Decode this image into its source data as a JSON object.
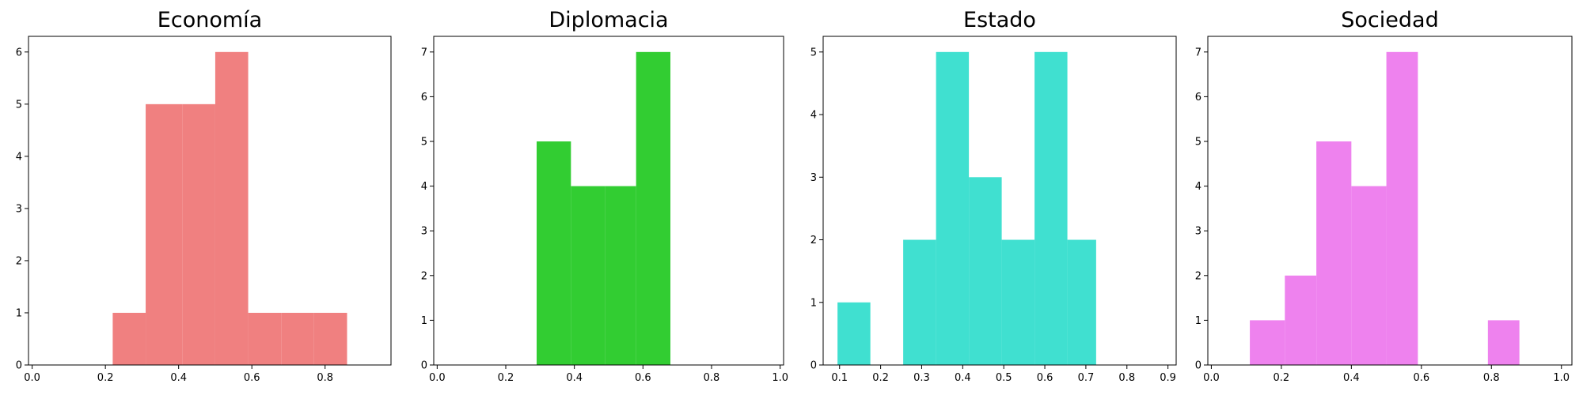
{
  "chart_data": [
    {
      "type": "bar",
      "title": "Economía",
      "color": "#F08080",
      "xlim": [
        -0.01,
        0.98
      ],
      "ylim": [
        0,
        6.3
      ],
      "xticks": [
        0.0,
        0.2,
        0.4,
        0.6,
        0.8
      ],
      "xtick_labels": [
        "0.0",
        "0.2",
        "0.4",
        "0.6",
        "0.8"
      ],
      "yticks": [
        0,
        1,
        2,
        3,
        4,
        5,
        6
      ],
      "ytick_labels": [
        "0",
        "1",
        "2",
        "3",
        "4",
        "5",
        "6"
      ],
      "bin_edges": [
        0.22,
        0.31,
        0.41,
        0.5,
        0.59,
        0.68,
        0.77,
        0.86
      ],
      "counts": [
        1,
        5,
        5,
        6,
        1,
        1,
        1
      ]
    },
    {
      "type": "bar",
      "title": "Diplomacia",
      "color": "#32CD32",
      "xlim": [
        -0.01,
        1.01
      ],
      "ylim": [
        0,
        7.35
      ],
      "xticks": [
        0.0,
        0.2,
        0.4,
        0.6,
        0.8,
        1.0
      ],
      "xtick_labels": [
        "0.0",
        "0.2",
        "0.4",
        "0.6",
        "0.8",
        "1.0"
      ],
      "yticks": [
        0,
        1,
        2,
        3,
        4,
        5,
        6,
        7
      ],
      "ytick_labels": [
        "0",
        "1",
        "2",
        "3",
        "4",
        "5",
        "6",
        "7"
      ],
      "bin_edges": [
        0.29,
        0.39,
        0.49,
        0.58,
        0.68
      ],
      "counts": [
        5,
        4,
        4,
        7
      ]
    },
    {
      "type": "bar",
      "title": "Estado",
      "color": "#40E0D0",
      "xlim": [
        0.06,
        0.92
      ],
      "ylim": [
        0,
        5.25
      ],
      "xticks": [
        0.1,
        0.2,
        0.3,
        0.4,
        0.5,
        0.6,
        0.7,
        0.8,
        0.9
      ],
      "xtick_labels": [
        "0.1",
        "0.2",
        "0.3",
        "0.4",
        "0.5",
        "0.6",
        "0.7",
        "0.8",
        "0.9"
      ],
      "yticks": [
        0,
        1,
        2,
        3,
        4,
        5
      ],
      "ytick_labels": [
        "0",
        "1",
        "2",
        "3",
        "4",
        "5"
      ],
      "bin_edges": [
        0.095,
        0.175,
        0.255,
        0.335,
        0.415,
        0.495,
        0.575,
        0.655,
        0.725
      ],
      "counts": [
        1,
        0,
        2,
        5,
        3,
        2,
        5,
        2
      ]
    },
    {
      "type": "bar",
      "title": "Sociedad",
      "color": "#EE82EE",
      "xlim": [
        -0.01,
        1.03
      ],
      "ylim": [
        0,
        7.35
      ],
      "xticks": [
        0.0,
        0.2,
        0.4,
        0.6,
        0.8,
        1.0
      ],
      "xtick_labels": [
        "0.0",
        "0.2",
        "0.4",
        "0.6",
        "0.8",
        "1.0"
      ],
      "yticks": [
        0,
        1,
        2,
        3,
        4,
        5,
        6,
        7
      ],
      "ytick_labels": [
        "0",
        "1",
        "2",
        "3",
        "4",
        "5",
        "6",
        "7"
      ],
      "bin_edges": [
        0.11,
        0.21,
        0.3,
        0.4,
        0.5,
        0.59,
        0.69,
        0.79,
        0.88
      ],
      "counts": [
        1,
        2,
        5,
        4,
        7,
        0,
        0,
        1
      ]
    }
  ]
}
